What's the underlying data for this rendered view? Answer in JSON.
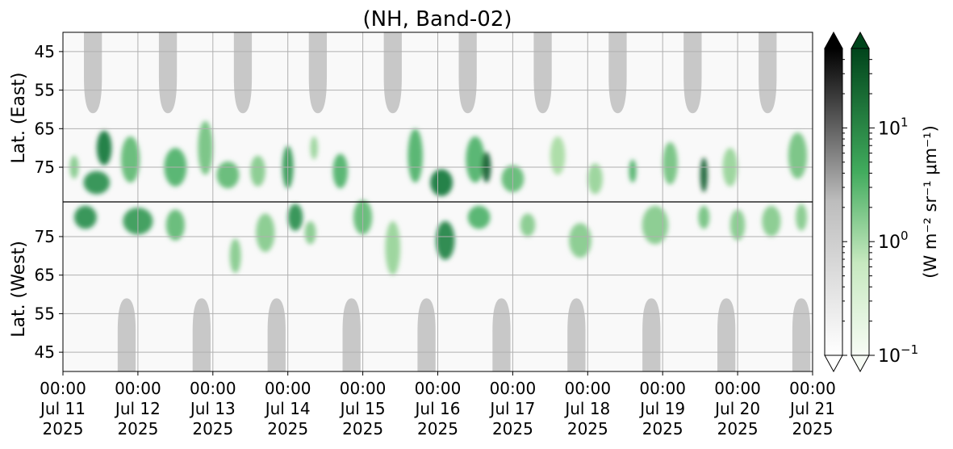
{
  "chart_data": {
    "type": "heatmap",
    "title": "(NH, Band-02)",
    "x_axis": {
      "start": "2025-07-11 00:00",
      "end": "2025-07-21 00:00",
      "ticks": [
        {
          "time": "00:00",
          "date": "Jul 11",
          "year": "2025"
        },
        {
          "time": "00:00",
          "date": "Jul 12",
          "year": "2025"
        },
        {
          "time": "00:00",
          "date": "Jul 13",
          "year": "2025"
        },
        {
          "time": "00:00",
          "date": "Jul 14",
          "year": "2025"
        },
        {
          "time": "00:00",
          "date": "Jul 15",
          "year": "2025"
        },
        {
          "time": "00:00",
          "date": "Jul 16",
          "year": "2025"
        },
        {
          "time": "00:00",
          "date": "Jul 17",
          "year": "2025"
        },
        {
          "time": "00:00",
          "date": "Jul 18",
          "year": "2025"
        },
        {
          "time": "00:00",
          "date": "Jul 19",
          "year": "2025"
        },
        {
          "time": "00:00",
          "date": "Jul 20",
          "year": "2025"
        },
        {
          "time": "00:00",
          "date": "Jul 21",
          "year": "2025"
        }
      ]
    },
    "y_panels": [
      {
        "label": "Lat. (East)",
        "range": [
          40,
          84
        ],
        "direction": "increasing-downward",
        "ticks": [
          "45",
          "55",
          "65",
          "75"
        ]
      },
      {
        "label": "Lat. (West)",
        "range": [
          84,
          40
        ],
        "direction": "decreasing-downward",
        "ticks": [
          "75",
          "65",
          "55",
          "45"
        ]
      }
    ],
    "grid": true,
    "colorbars": [
      {
        "name": "gray",
        "scale": "log",
        "range": [
          0.1,
          50
        ],
        "extend": "both",
        "colors": [
          "#ffffff",
          "#000000"
        ]
      },
      {
        "name": "green",
        "scale": "log",
        "range": [
          0.1,
          50
        ],
        "extend": "both",
        "colors": [
          "#f7fcf5",
          "#00441b"
        ],
        "ticks": [
          {
            "base": "10",
            "exp": "1"
          },
          {
            "base": "10",
            "exp": "0"
          },
          {
            "base": "10",
            "exp": "−1"
          }
        ],
        "label": "(W m⁻² sr⁻¹ μm⁻¹)"
      }
    ],
    "night_regions": {
      "color": "#c8c8c8",
      "east_top": [
        {
          "center_day": 0.4,
          "max_lat": 61
        },
        {
          "center_day": 1.4,
          "max_lat": 61
        },
        {
          "center_day": 2.4,
          "max_lat": 61
        },
        {
          "center_day": 3.4,
          "max_lat": 61
        },
        {
          "center_day": 4.4,
          "max_lat": 61
        },
        {
          "center_day": 5.4,
          "max_lat": 61
        },
        {
          "center_day": 6.4,
          "max_lat": 61
        },
        {
          "center_day": 7.4,
          "max_lat": 61
        },
        {
          "center_day": 8.4,
          "max_lat": 61
        },
        {
          "center_day": 9.4,
          "max_lat": 61
        }
      ],
      "west_bottom": [
        {
          "center_day": 0.85,
          "max_lat": 59
        },
        {
          "center_day": 1.85,
          "max_lat": 59
        },
        {
          "center_day": 2.85,
          "max_lat": 59
        },
        {
          "center_day": 3.85,
          "max_lat": 59
        },
        {
          "center_day": 4.85,
          "max_lat": 59
        },
        {
          "center_day": 5.85,
          "max_lat": 59
        },
        {
          "center_day": 6.85,
          "max_lat": 59
        },
        {
          "center_day": 7.85,
          "max_lat": 59
        },
        {
          "center_day": 8.85,
          "max_lat": 59
        },
        {
          "center_day": 9.85,
          "max_lat": 59
        }
      ]
    },
    "aurora_blobs": [
      {
        "day": 0.15,
        "panel": "east",
        "lat": 75,
        "day_width": 0.12,
        "lat_height": 6,
        "intensity": 0.45
      },
      {
        "day": 0.55,
        "panel": "east",
        "lat": 70,
        "day_width": 0.2,
        "lat_height": 9,
        "intensity": 0.85
      },
      {
        "day": 0.45,
        "panel": "east",
        "lat": 79,
        "day_width": 0.35,
        "lat_height": 6,
        "intensity": 0.75
      },
      {
        "day": 0.3,
        "panel": "west",
        "lat": 80,
        "day_width": 0.3,
        "lat_height": 6,
        "intensity": 0.75
      },
      {
        "day": 0.9,
        "panel": "east",
        "lat": 73,
        "day_width": 0.25,
        "lat_height": 12,
        "intensity": 0.55
      },
      {
        "day": 1.0,
        "panel": "west",
        "lat": 79,
        "day_width": 0.4,
        "lat_height": 7,
        "intensity": 0.7
      },
      {
        "day": 1.5,
        "panel": "east",
        "lat": 75,
        "day_width": 0.3,
        "lat_height": 10,
        "intensity": 0.6
      },
      {
        "day": 1.5,
        "panel": "west",
        "lat": 78,
        "day_width": 0.25,
        "lat_height": 8,
        "intensity": 0.55
      },
      {
        "day": 1.9,
        "panel": "east",
        "lat": 70,
        "day_width": 0.2,
        "lat_height": 14,
        "intensity": 0.5
      },
      {
        "day": 2.2,
        "panel": "east",
        "lat": 77,
        "day_width": 0.3,
        "lat_height": 7,
        "intensity": 0.55
      },
      {
        "day": 2.3,
        "panel": "west",
        "lat": 70,
        "day_width": 0.15,
        "lat_height": 9,
        "intensity": 0.45
      },
      {
        "day": 2.7,
        "panel": "west",
        "lat": 76,
        "day_width": 0.25,
        "lat_height": 10,
        "intensity": 0.45
      },
      {
        "day": 2.6,
        "panel": "east",
        "lat": 76,
        "day_width": 0.2,
        "lat_height": 8,
        "intensity": 0.45
      },
      {
        "day": 3.1,
        "panel": "west",
        "lat": 80,
        "day_width": 0.2,
        "lat_height": 7,
        "intensity": 0.75
      },
      {
        "day": 3.0,
        "panel": "east",
        "lat": 75,
        "day_width": 0.15,
        "lat_height": 11,
        "intensity": 0.7
      },
      {
        "day": 3.35,
        "panel": "east",
        "lat": 70,
        "day_width": 0.1,
        "lat_height": 6,
        "intensity": 0.4
      },
      {
        "day": 3.3,
        "panel": "west",
        "lat": 76,
        "day_width": 0.15,
        "lat_height": 6,
        "intensity": 0.45
      },
      {
        "day": 3.7,
        "panel": "east",
        "lat": 76,
        "day_width": 0.2,
        "lat_height": 9,
        "intensity": 0.6
      },
      {
        "day": 4.0,
        "panel": "west",
        "lat": 80,
        "day_width": 0.25,
        "lat_height": 9,
        "intensity": 0.55
      },
      {
        "day": 4.4,
        "panel": "west",
        "lat": 72,
        "day_width": 0.2,
        "lat_height": 14,
        "intensity": 0.4
      },
      {
        "day": 4.7,
        "panel": "east",
        "lat": 72,
        "day_width": 0.2,
        "lat_height": 14,
        "intensity": 0.6
      },
      {
        "day": 5.1,
        "panel": "west",
        "lat": 74,
        "day_width": 0.25,
        "lat_height": 10,
        "intensity": 0.8
      },
      {
        "day": 5.05,
        "panel": "east",
        "lat": 79,
        "day_width": 0.3,
        "lat_height": 7,
        "intensity": 0.85
      },
      {
        "day": 5.5,
        "panel": "east",
        "lat": 73,
        "day_width": 0.25,
        "lat_height": 12,
        "intensity": 0.6
      },
      {
        "day": 5.55,
        "panel": "west",
        "lat": 80,
        "day_width": 0.3,
        "lat_height": 6,
        "intensity": 0.6
      },
      {
        "day": 5.65,
        "panel": "east",
        "lat": 75,
        "day_width": 0.12,
        "lat_height": 8,
        "intensity": 0.95
      },
      {
        "day": 6.0,
        "panel": "east",
        "lat": 78,
        "day_width": 0.3,
        "lat_height": 7,
        "intensity": 0.55
      },
      {
        "day": 6.2,
        "panel": "west",
        "lat": 78,
        "day_width": 0.2,
        "lat_height": 6,
        "intensity": 0.45
      },
      {
        "day": 6.6,
        "panel": "east",
        "lat": 72,
        "day_width": 0.2,
        "lat_height": 10,
        "intensity": 0.35
      },
      {
        "day": 6.9,
        "panel": "west",
        "lat": 74,
        "day_width": 0.3,
        "lat_height": 9,
        "intensity": 0.45
      },
      {
        "day": 7.1,
        "panel": "east",
        "lat": 78,
        "day_width": 0.2,
        "lat_height": 8,
        "intensity": 0.4
      },
      {
        "day": 7.6,
        "panel": "east",
        "lat": 76,
        "day_width": 0.1,
        "lat_height": 6,
        "intensity": 0.6
      },
      {
        "day": 7.9,
        "panel": "west",
        "lat": 78,
        "day_width": 0.35,
        "lat_height": 10,
        "intensity": 0.45
      },
      {
        "day": 8.1,
        "panel": "east",
        "lat": 74,
        "day_width": 0.2,
        "lat_height": 11,
        "intensity": 0.5
      },
      {
        "day": 8.55,
        "panel": "east",
        "lat": 77,
        "day_width": 0.1,
        "lat_height": 9,
        "intensity": 0.95
      },
      {
        "day": 8.55,
        "panel": "west",
        "lat": 80,
        "day_width": 0.15,
        "lat_height": 6,
        "intensity": 0.5
      },
      {
        "day": 8.9,
        "panel": "east",
        "lat": 75,
        "day_width": 0.2,
        "lat_height": 10,
        "intensity": 0.4
      },
      {
        "day": 9.0,
        "panel": "west",
        "lat": 78,
        "day_width": 0.2,
        "lat_height": 8,
        "intensity": 0.45
      },
      {
        "day": 9.45,
        "panel": "west",
        "lat": 79,
        "day_width": 0.25,
        "lat_height": 8,
        "intensity": 0.45
      },
      {
        "day": 9.8,
        "panel": "east",
        "lat": 72,
        "day_width": 0.25,
        "lat_height": 12,
        "intensity": 0.5
      },
      {
        "day": 9.85,
        "panel": "west",
        "lat": 80,
        "day_width": 0.15,
        "lat_height": 7,
        "intensity": 0.45
      }
    ]
  }
}
